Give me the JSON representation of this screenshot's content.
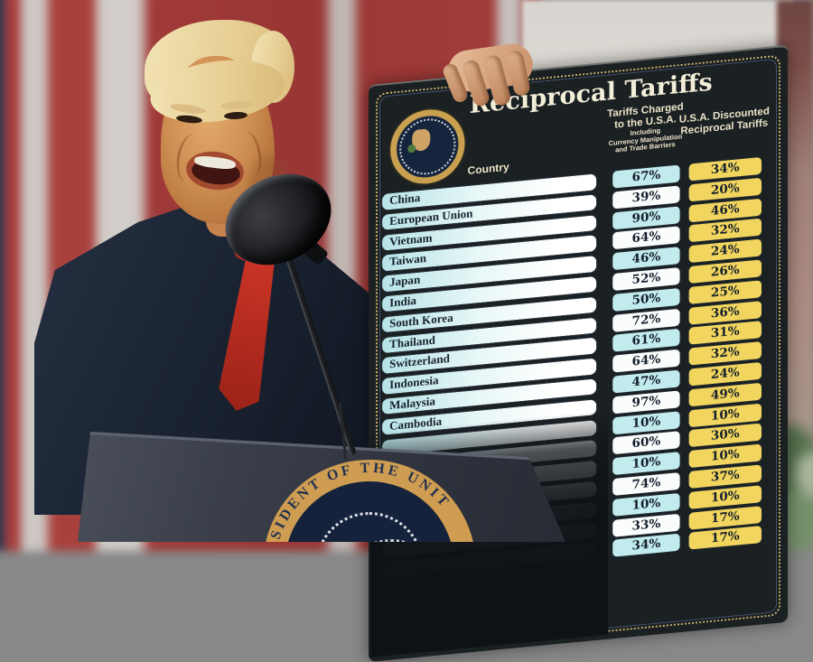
{
  "board": {
    "title": "Reciprocal Tariffs",
    "country_header": "Country",
    "charged_header_lines": [
      "Tariffs Charged",
      "to the U.S.A."
    ],
    "charged_subheader_lines": [
      "Including",
      "Currency Manipulation",
      "and Trade Barriers"
    ],
    "discounted_header_lines": [
      "U.S.A. Discounted",
      "Reciprocal Tariffs"
    ],
    "seal_icon": "presidential-seal-icon"
  },
  "chart_data": {
    "type": "table",
    "title": "Reciprocal Tariffs",
    "columns": [
      "Country",
      "Tariffs Charged to the U.S.A. Including Currency Manipulation and Trade Barriers",
      "U.S.A. Discounted Reciprocal Tariffs"
    ],
    "rows": [
      {
        "country": "China",
        "charged_pct": 67,
        "discounted_pct": 34,
        "country_visible": true
      },
      {
        "country": "European Union",
        "charged_pct": 39,
        "discounted_pct": 20,
        "country_visible": true
      },
      {
        "country": "Vietnam",
        "charged_pct": 90,
        "discounted_pct": 46,
        "country_visible": true
      },
      {
        "country": "Taiwan",
        "charged_pct": 64,
        "discounted_pct": 32,
        "country_visible": true
      },
      {
        "country": "Japan",
        "charged_pct": 46,
        "discounted_pct": 24,
        "country_visible": true
      },
      {
        "country": "India",
        "charged_pct": 52,
        "discounted_pct": 26,
        "country_visible": true
      },
      {
        "country": "South Korea",
        "charged_pct": 50,
        "discounted_pct": 25,
        "country_visible": true
      },
      {
        "country": "Thailand",
        "charged_pct": 72,
        "discounted_pct": 36,
        "country_visible": true
      },
      {
        "country": "Switzerland",
        "charged_pct": 61,
        "discounted_pct": 31,
        "country_visible": true
      },
      {
        "country": "Indonesia",
        "charged_pct": 64,
        "discounted_pct": 32,
        "country_visible": true
      },
      {
        "country": "Malaysia",
        "charged_pct": 47,
        "discounted_pct": 24,
        "country_visible": true
      },
      {
        "country": "Cambodia",
        "charged_pct": 97,
        "discounted_pct": 49,
        "country_visible": true
      },
      {
        "country": "",
        "charged_pct": 10,
        "discounted_pct": 10,
        "country_visible": false
      },
      {
        "country": "",
        "charged_pct": 60,
        "discounted_pct": 30,
        "country_visible": false
      },
      {
        "country": "",
        "charged_pct": 10,
        "discounted_pct": 10,
        "country_visible": false
      },
      {
        "country": "",
        "charged_pct": 74,
        "discounted_pct": 37,
        "country_visible": false
      },
      {
        "country": "",
        "charged_pct": 10,
        "discounted_pct": 10,
        "country_visible": false
      },
      {
        "country": "",
        "charged_pct": 33,
        "discounted_pct": 17,
        "country_visible": false
      },
      {
        "country": "",
        "charged_pct": 34,
        "discounted_pct": 17,
        "country_visible": false
      }
    ]
  },
  "podium": {
    "seal_visible_text": "RESIDENT OF THE UNIT",
    "seal_icon": "presidential-seal-icon"
  },
  "colors": {
    "board_bg": "#1b2023",
    "board_border_gold": "#c8b06a",
    "cell_cyan": "#c2ebee",
    "cell_yellow": "#f2d55e",
    "title_cream": "#f3eed8",
    "flag_red": "#a03c3a",
    "flag_white": "#cdc8c4",
    "suit_navy": "#1b2433",
    "tie_red": "#c22d20",
    "podium_gray": "#3a3f4a",
    "seal_gold": "#cf9d52"
  }
}
